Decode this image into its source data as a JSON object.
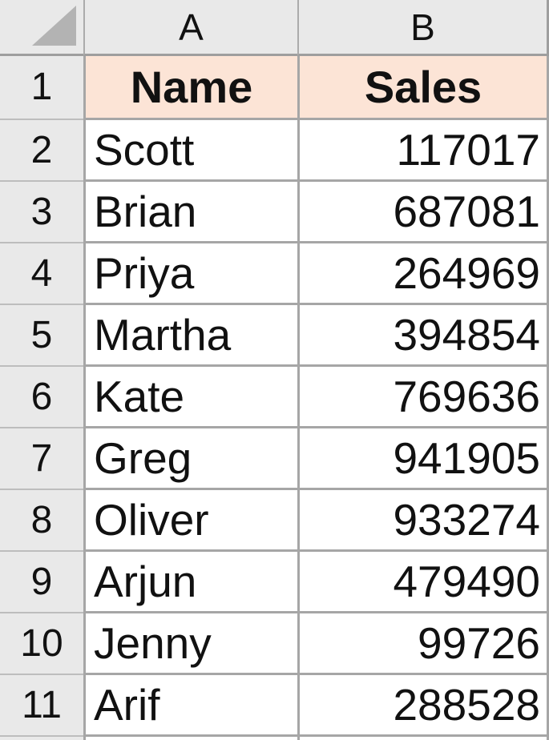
{
  "sheet": {
    "columns": [
      "A",
      "B"
    ],
    "header_row": {
      "num": "1",
      "name": "Name",
      "sales": "Sales"
    },
    "data_rows": [
      {
        "num": "2",
        "name": "Scott",
        "sales": "117017"
      },
      {
        "num": "3",
        "name": "Brian",
        "sales": "687081"
      },
      {
        "num": "4",
        "name": "Priya",
        "sales": "264969"
      },
      {
        "num": "5",
        "name": "Martha",
        "sales": "394854"
      },
      {
        "num": "6",
        "name": "Kate",
        "sales": "769636"
      },
      {
        "num": "7",
        "name": "Greg",
        "sales": "941905"
      },
      {
        "num": "8",
        "name": "Oliver",
        "sales": "933274"
      },
      {
        "num": "9",
        "name": "Arjun",
        "sales": "479490"
      },
      {
        "num": "10",
        "name": "Jenny",
        "sales": "99726"
      },
      {
        "num": "11",
        "name": "Arif",
        "sales": "288528"
      }
    ]
  },
  "colors": {
    "header-fill": "#FCE4D6",
    "panel-bg": "#E9E9E9",
    "grid-border": "#A6A6A6",
    "header-border": "#9E9E9E",
    "rowhead-separator": "#BDBDBD",
    "triangle": "#B3B3B3"
  }
}
